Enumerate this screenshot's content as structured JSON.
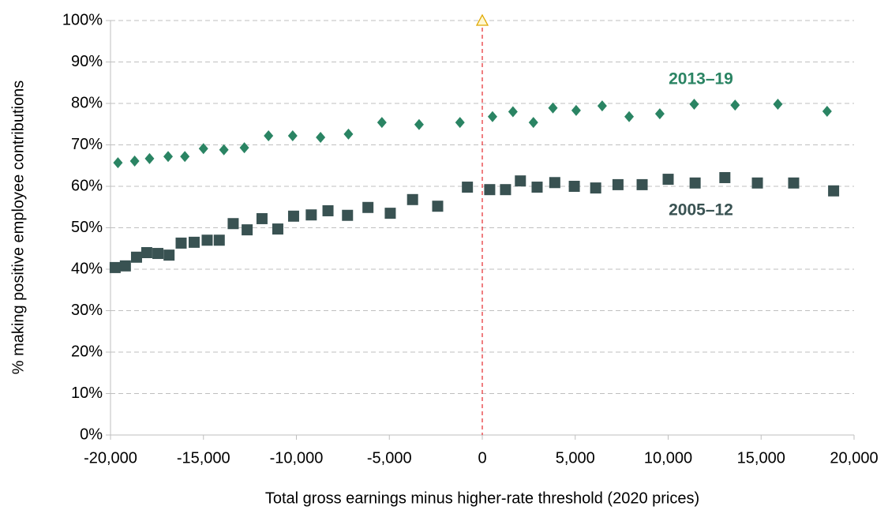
{
  "chart_data": {
    "type": "scatter",
    "x_label": "Total gross earnings minus higher-rate threshold (2020 prices)",
    "y_label": "% making positive employee contributions",
    "xlim": [
      -20000,
      20000
    ],
    "xticks": [
      {
        "value": -20000,
        "label": "-20,000"
      },
      {
        "value": -15000,
        "label": "-15,000"
      },
      {
        "value": -10000,
        "label": "-10,000"
      },
      {
        "value": -5000,
        "label": "-5,000"
      },
      0,
      {
        "value": 5000,
        "label": "5,000"
      },
      {
        "value": 10000,
        "label": "10,000"
      },
      {
        "value": 15000,
        "label": "15,000"
      },
      {
        "value": 20000,
        "label": "20,000"
      }
    ],
    "ylim": [
      0,
      100
    ],
    "yticks": [
      {
        "value": 0,
        "label": "0%"
      },
      {
        "value": 10,
        "label": "10%"
      },
      {
        "value": 20,
        "label": "20%"
      },
      {
        "value": 30,
        "label": "30%"
      },
      {
        "value": 40,
        "label": "40%"
      },
      {
        "value": 50,
        "label": "50%"
      },
      {
        "value": 60,
        "label": "60%"
      },
      {
        "value": 70,
        "label": "70%"
      },
      {
        "value": 80,
        "label": "80%"
      },
      {
        "value": 90,
        "label": "90%"
      },
      {
        "value": 100,
        "label": "100%"
      }
    ],
    "grid": true,
    "reference_line_x": 0,
    "series": [
      {
        "name": "2013–19",
        "color": "#2a8463",
        "marker": "diamond",
        "x": [
          -19600,
          -18700,
          -17900,
          -16900,
          -16000,
          -15000,
          -13900,
          -12800,
          -11500,
          -10200,
          -8700,
          -7200,
          -5400,
          -3400,
          -1200,
          550,
          1650,
          2750,
          3800,
          5050,
          6450,
          7900,
          9550,
          11400,
          13600,
          15900,
          18550
        ],
        "values": [
          65.7,
          66.1,
          66.7,
          67.2,
          67.2,
          69.1,
          68.8,
          69.3,
          72.2,
          72.2,
          71.8,
          72.6,
          75.4,
          74.9,
          75.4,
          76.8,
          78.0,
          75.4,
          78.9,
          78.3,
          79.4,
          76.8,
          77.5,
          79.8,
          79.6,
          79.8,
          78.1
        ]
      },
      {
        "name": "2005–12",
        "color": "#395252",
        "marker": "square",
        "x": [
          -19750,
          -19200,
          -18600,
          -18050,
          -17450,
          -16850,
          -16200,
          -15500,
          -14800,
          -14150,
          -13400,
          -12650,
          -11850,
          -11000,
          -10150,
          -9200,
          -8300,
          -7250,
          -6150,
          -4950,
          -3750,
          -2400,
          -800,
          400,
          1250,
          2050,
          2950,
          3900,
          4950,
          6100,
          7300,
          8600,
          10000,
          11450,
          13050,
          14800,
          16750,
          18900
        ],
        "values": [
          40.4,
          40.8,
          42.9,
          44.0,
          43.8,
          43.4,
          46.3,
          46.5,
          47.0,
          47.0,
          51.0,
          49.5,
          52.2,
          49.7,
          52.8,
          53.1,
          54.1,
          53.0,
          54.9,
          53.5,
          56.8,
          55.2,
          59.8,
          59.2,
          59.2,
          61.3,
          59.8,
          60.9,
          60.0,
          59.6,
          60.4,
          60.4,
          61.7,
          60.8,
          62.1,
          60.8,
          60.8,
          58.9
        ]
      }
    ]
  }
}
